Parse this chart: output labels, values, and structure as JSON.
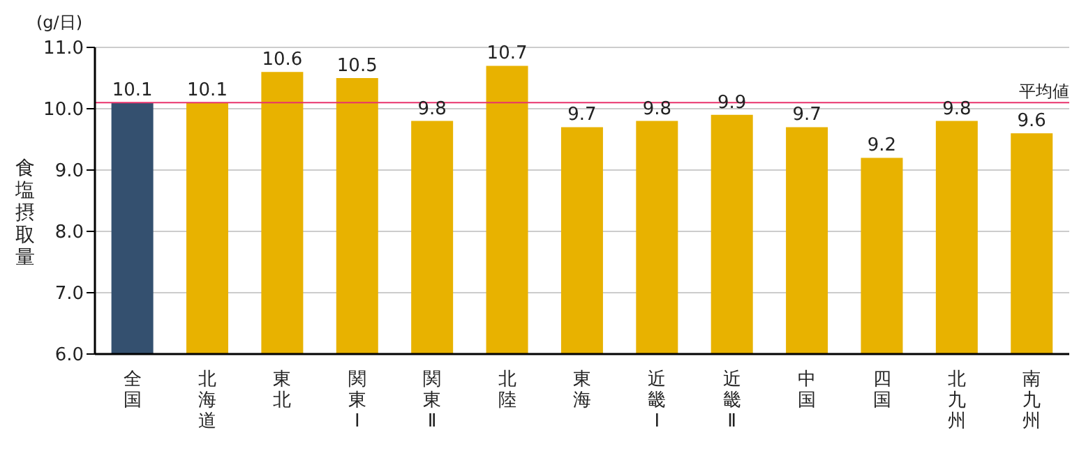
{
  "chart_data": {
    "type": "bar",
    "ylabel": "食塩摂取量",
    "annotations": [
      "(g/日)"
    ],
    "categories": [
      "全国",
      "北海道",
      "東北",
      "関東Ⅰ",
      "関東Ⅱ",
      "北陸",
      "東海",
      "近畿Ⅰ",
      "近畿Ⅱ",
      "中国",
      "四国",
      "北九州",
      "南九州"
    ],
    "values": [
      10.1,
      10.1,
      10.6,
      10.5,
      9.8,
      10.7,
      9.7,
      9.8,
      9.9,
      9.7,
      9.2,
      9.8,
      9.6
    ],
    "colors": [
      "#34506f",
      "#e8b200",
      "#e8b200",
      "#e8b200",
      "#e8b200",
      "#e8b200",
      "#e8b200",
      "#e8b200",
      "#e8b200",
      "#e8b200",
      "#e8b200",
      "#e8b200",
      "#e8b200"
    ],
    "ylim": [
      6,
      11
    ],
    "yticks": [
      {
        "value": 6,
        "label": "6.0"
      },
      {
        "value": 7,
        "label": "7.0"
      },
      {
        "value": 8,
        "label": "8.0"
      },
      {
        "value": 9,
        "label": "9.0"
      },
      {
        "value": 10,
        "label": "10.0"
      },
      {
        "value": 11,
        "label": "11.0"
      }
    ],
    "ref_lines": [
      {
        "axis": "y",
        "value": 10.1,
        "label": "平均値",
        "color": "#e8336b"
      }
    ],
    "data_labels": true,
    "grid": "y"
  }
}
